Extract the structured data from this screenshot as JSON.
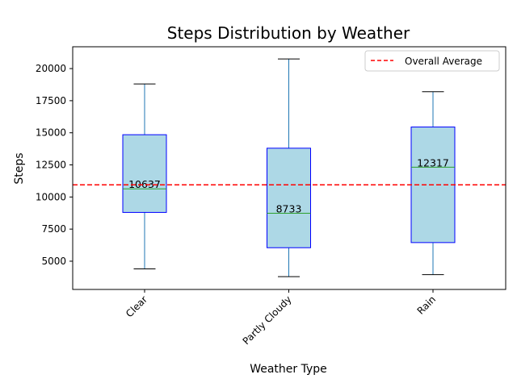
{
  "chart_data": {
    "type": "box",
    "title": "Steps Distribution by Weather",
    "xlabel": "Weather Type",
    "ylabel": "Steps",
    "categories": [
      "Clear",
      "Partly Cloudy",
      "Rain"
    ],
    "boxes": [
      {
        "category": "Clear",
        "whisker_low": 4400,
        "q1": 8800,
        "median": 10637,
        "q3": 14850,
        "whisker_high": 18800,
        "median_label": "10637"
      },
      {
        "category": "Partly Cloudy",
        "whisker_low": 3800,
        "q1": 6050,
        "median": 8733,
        "q3": 13800,
        "whisker_high": 20750,
        "median_label": "8733"
      },
      {
        "category": "Rain",
        "whisker_low": 3950,
        "q1": 6450,
        "median": 12317,
        "q3": 15450,
        "whisker_high": 18200,
        "median_label": "12317"
      }
    ],
    "reference_line": {
      "label": "Overall Average",
      "value": 10950,
      "color": "#ff0000",
      "style": "dashed"
    },
    "ylim": [
      2800,
      21700
    ],
    "yticks": [
      "5000",
      "7500",
      "10000",
      "12500",
      "15000",
      "17500",
      "20000"
    ],
    "ytick_values": [
      5000,
      7500,
      10000,
      12500,
      15000,
      17500,
      20000
    ],
    "legend_position": "top-right",
    "grid": false,
    "colors": {
      "box_fill": "#add8e6",
      "box_edge": "#0000ff",
      "whisker": "#1f77b4",
      "cap": "#000000",
      "median": "#2ca02c",
      "reference": "#ff0000"
    }
  }
}
